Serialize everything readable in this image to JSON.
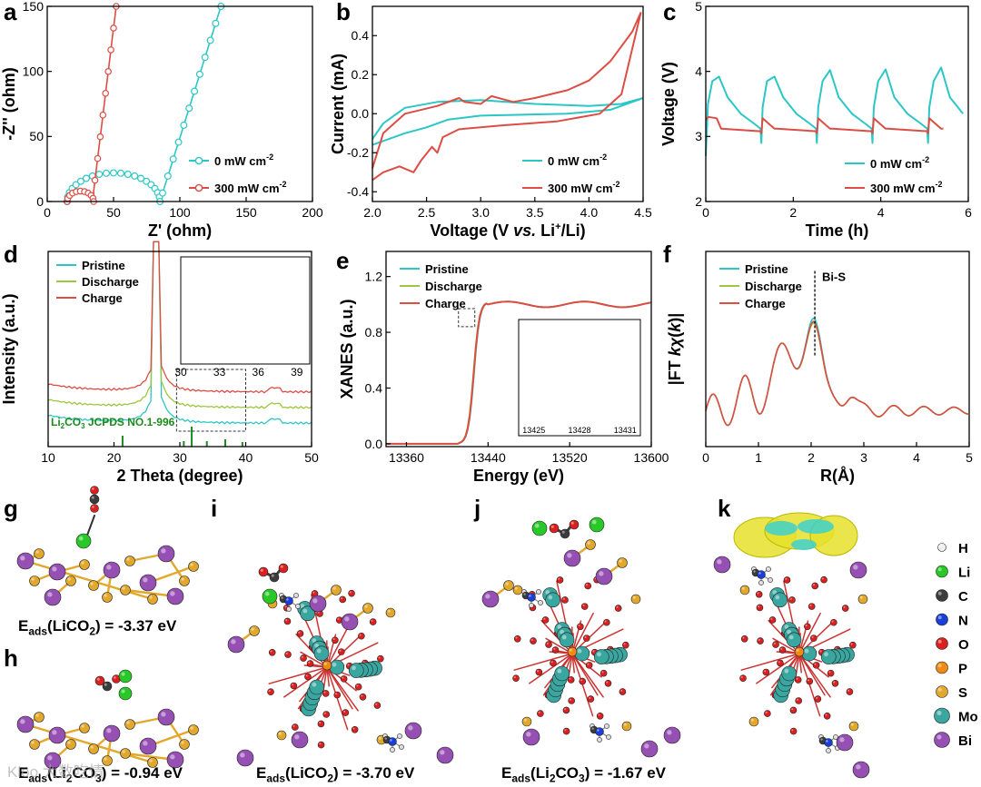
{
  "panel_labels": {
    "a": "a",
    "b": "b",
    "c": "c",
    "d": "d",
    "e": "e",
    "f": "f",
    "g": "g",
    "h": "h",
    "i": "i",
    "j": "j",
    "k": "k"
  },
  "colors": {
    "teal": "#2cc6c6",
    "red": "#dc4d45",
    "green": "#9cc73e",
    "dkgreen": "#1d8a1d",
    "Li": "#28c828",
    "C": "#3c3c3c",
    "N": "#1a3fd8",
    "O": "#dc2020",
    "P": "#f08a10",
    "S": "#e2a82c",
    "Mo": "#3aa6a0",
    "Bi": "#9650b4",
    "H": "#ffffff"
  },
  "chart_data": [
    {
      "id": "a",
      "type": "line",
      "xlabel": "Z' (ohm)",
      "ylabel": "-Z'' (ohm)",
      "xlim": [
        0,
        200
      ],
      "ylim": [
        0,
        150
      ],
      "xticks": [
        0,
        50,
        100,
        150,
        200
      ],
      "yticks": [
        0,
        50,
        100,
        150
      ],
      "series": [
        {
          "name": "0 mW cm",
          "sup": "-2",
          "color": "teal",
          "markers": true
        },
        {
          "name": "300 mW cm",
          "sup": "-2",
          "color": "red",
          "markers": true
        }
      ]
    },
    {
      "id": "b",
      "type": "line",
      "xlabel": "Voltage (V vs. Li+/Li)",
      "ylabel": "Current (mA)",
      "xlim": [
        2.0,
        4.5
      ],
      "ylim": [
        -0.45,
        0.55
      ],
      "xticks": [
        2.0,
        2.5,
        3.0,
        3.5,
        4.0,
        4.5
      ],
      "yticks": [
        -0.4,
        -0.2,
        0.0,
        0.2,
        0.4
      ],
      "series": [
        {
          "name": "0 mW cm",
          "sup": "-2",
          "color": "teal"
        },
        {
          "name": "300 mW cm",
          "sup": "-2",
          "color": "red"
        }
      ]
    },
    {
      "id": "c",
      "type": "line",
      "xlabel": "Time (h)",
      "ylabel": "Voltage (V)",
      "xlim": [
        0,
        6
      ],
      "ylim": [
        2,
        5
      ],
      "xticks": [
        0,
        2,
        4,
        6
      ],
      "yticks": [
        2,
        3,
        4,
        5
      ],
      "series": [
        {
          "name": "0 mW cm",
          "sup": "-2",
          "color": "teal"
        },
        {
          "name": "300 mW cm",
          "sup": "-2",
          "color": "red"
        }
      ]
    },
    {
      "id": "d",
      "type": "line",
      "xlabel": "2 Theta (degree)",
      "ylabel": "Intensity (a.u.)",
      "xlim": [
        10,
        50
      ],
      "xticks": [
        10,
        20,
        30,
        40,
        50
      ],
      "inset_xticks": [
        30,
        33,
        36,
        39
      ],
      "ref_label": "Li2CO3 JCPDS NO.1-996",
      "series": [
        {
          "name": "Pristine",
          "color": "teal"
        },
        {
          "name": "Discharge",
          "color": "green"
        },
        {
          "name": "Charge",
          "color": "red"
        }
      ]
    },
    {
      "id": "e",
      "type": "line",
      "xlabel": "Energy (eV)",
      "ylabel": "XANES (a.u.)",
      "xlim": [
        13340,
        13600
      ],
      "ylim": [
        -0.02,
        1.38
      ],
      "xticks": [
        13360,
        13440,
        13520,
        13600
      ],
      "yticks": [
        0.0,
        0.4,
        0.8,
        1.2
      ],
      "inset_xticks": [
        13425,
        13428,
        13431
      ],
      "series": [
        {
          "name": "Pristine",
          "color": "teal"
        },
        {
          "name": "Discharge",
          "color": "green"
        },
        {
          "name": "Charge",
          "color": "red"
        }
      ]
    },
    {
      "id": "f",
      "type": "line",
      "xlabel": "R(Å)",
      "ylabel": "|FT kχ(k)|",
      "xlim": [
        0,
        5
      ],
      "xticks": [
        0,
        1,
        2,
        3,
        4,
        5
      ],
      "annotation": "Bi-S",
      "series": [
        {
          "name": "Pristine",
          "color": "teal"
        },
        {
          "name": "Discharge",
          "color": "green"
        },
        {
          "name": "Charge",
          "color": "red"
        }
      ]
    }
  ],
  "captions": {
    "g": {
      "pre": "E",
      "sub": "ads",
      "mid": "(LiCO",
      "sub2": "2",
      "post": ") = -3.37 eV"
    },
    "h": {
      "pre": "E",
      "sub": "ads",
      "mid": "(Li",
      "sub2": "2",
      "mid2": "CO",
      "sub3": "3",
      "post": ") = -0.94 eV"
    },
    "i": {
      "pre": "E",
      "sub": "ads",
      "mid": "(LiCO",
      "sub2": "2",
      "post": ") = -3.70 eV"
    },
    "j": {
      "pre": "E",
      "sub": "ads",
      "mid": "(Li",
      "sub2": "2",
      "mid2": "CO",
      "sub3": "3",
      "post": ") = -1.67 eV"
    }
  },
  "element_legend": [
    "H",
    "Li",
    "C",
    "N",
    "O",
    "P",
    "S",
    "Mo",
    "Bi"
  ],
  "watermark": "Kloo 大数吃情"
}
